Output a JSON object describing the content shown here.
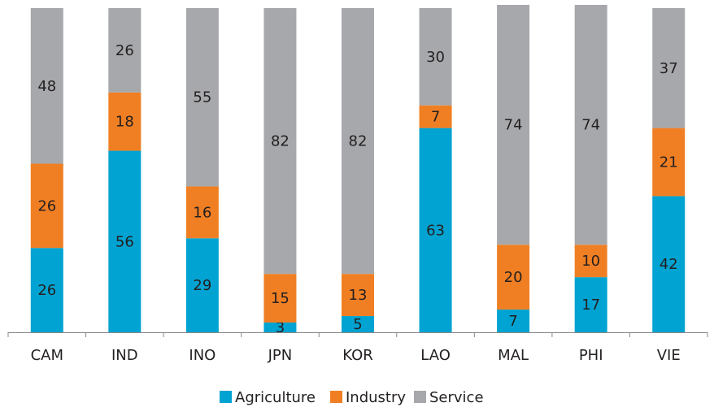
{
  "chart_data": {
    "type": "stacked_bar",
    "categories": [
      "CAM",
      "IND",
      "INO",
      "JPN",
      "KOR",
      "LAO",
      "MAL",
      "PHI",
      "VIE"
    ],
    "series": [
      {
        "name": "Agriculture",
        "color": "#00a3d1",
        "values": [
          26,
          56,
          29,
          3,
          5,
          63,
          7,
          17,
          42
        ]
      },
      {
        "name": "Industry",
        "color": "#f07f23",
        "values": [
          26,
          18,
          16,
          15,
          13,
          7,
          20,
          10,
          21
        ]
      },
      {
        "name": "Service",
        "color": "#a7a8ab",
        "values": [
          48,
          26,
          55,
          82,
          82,
          30,
          74,
          74,
          37
        ]
      }
    ],
    "legend": "bottom"
  }
}
